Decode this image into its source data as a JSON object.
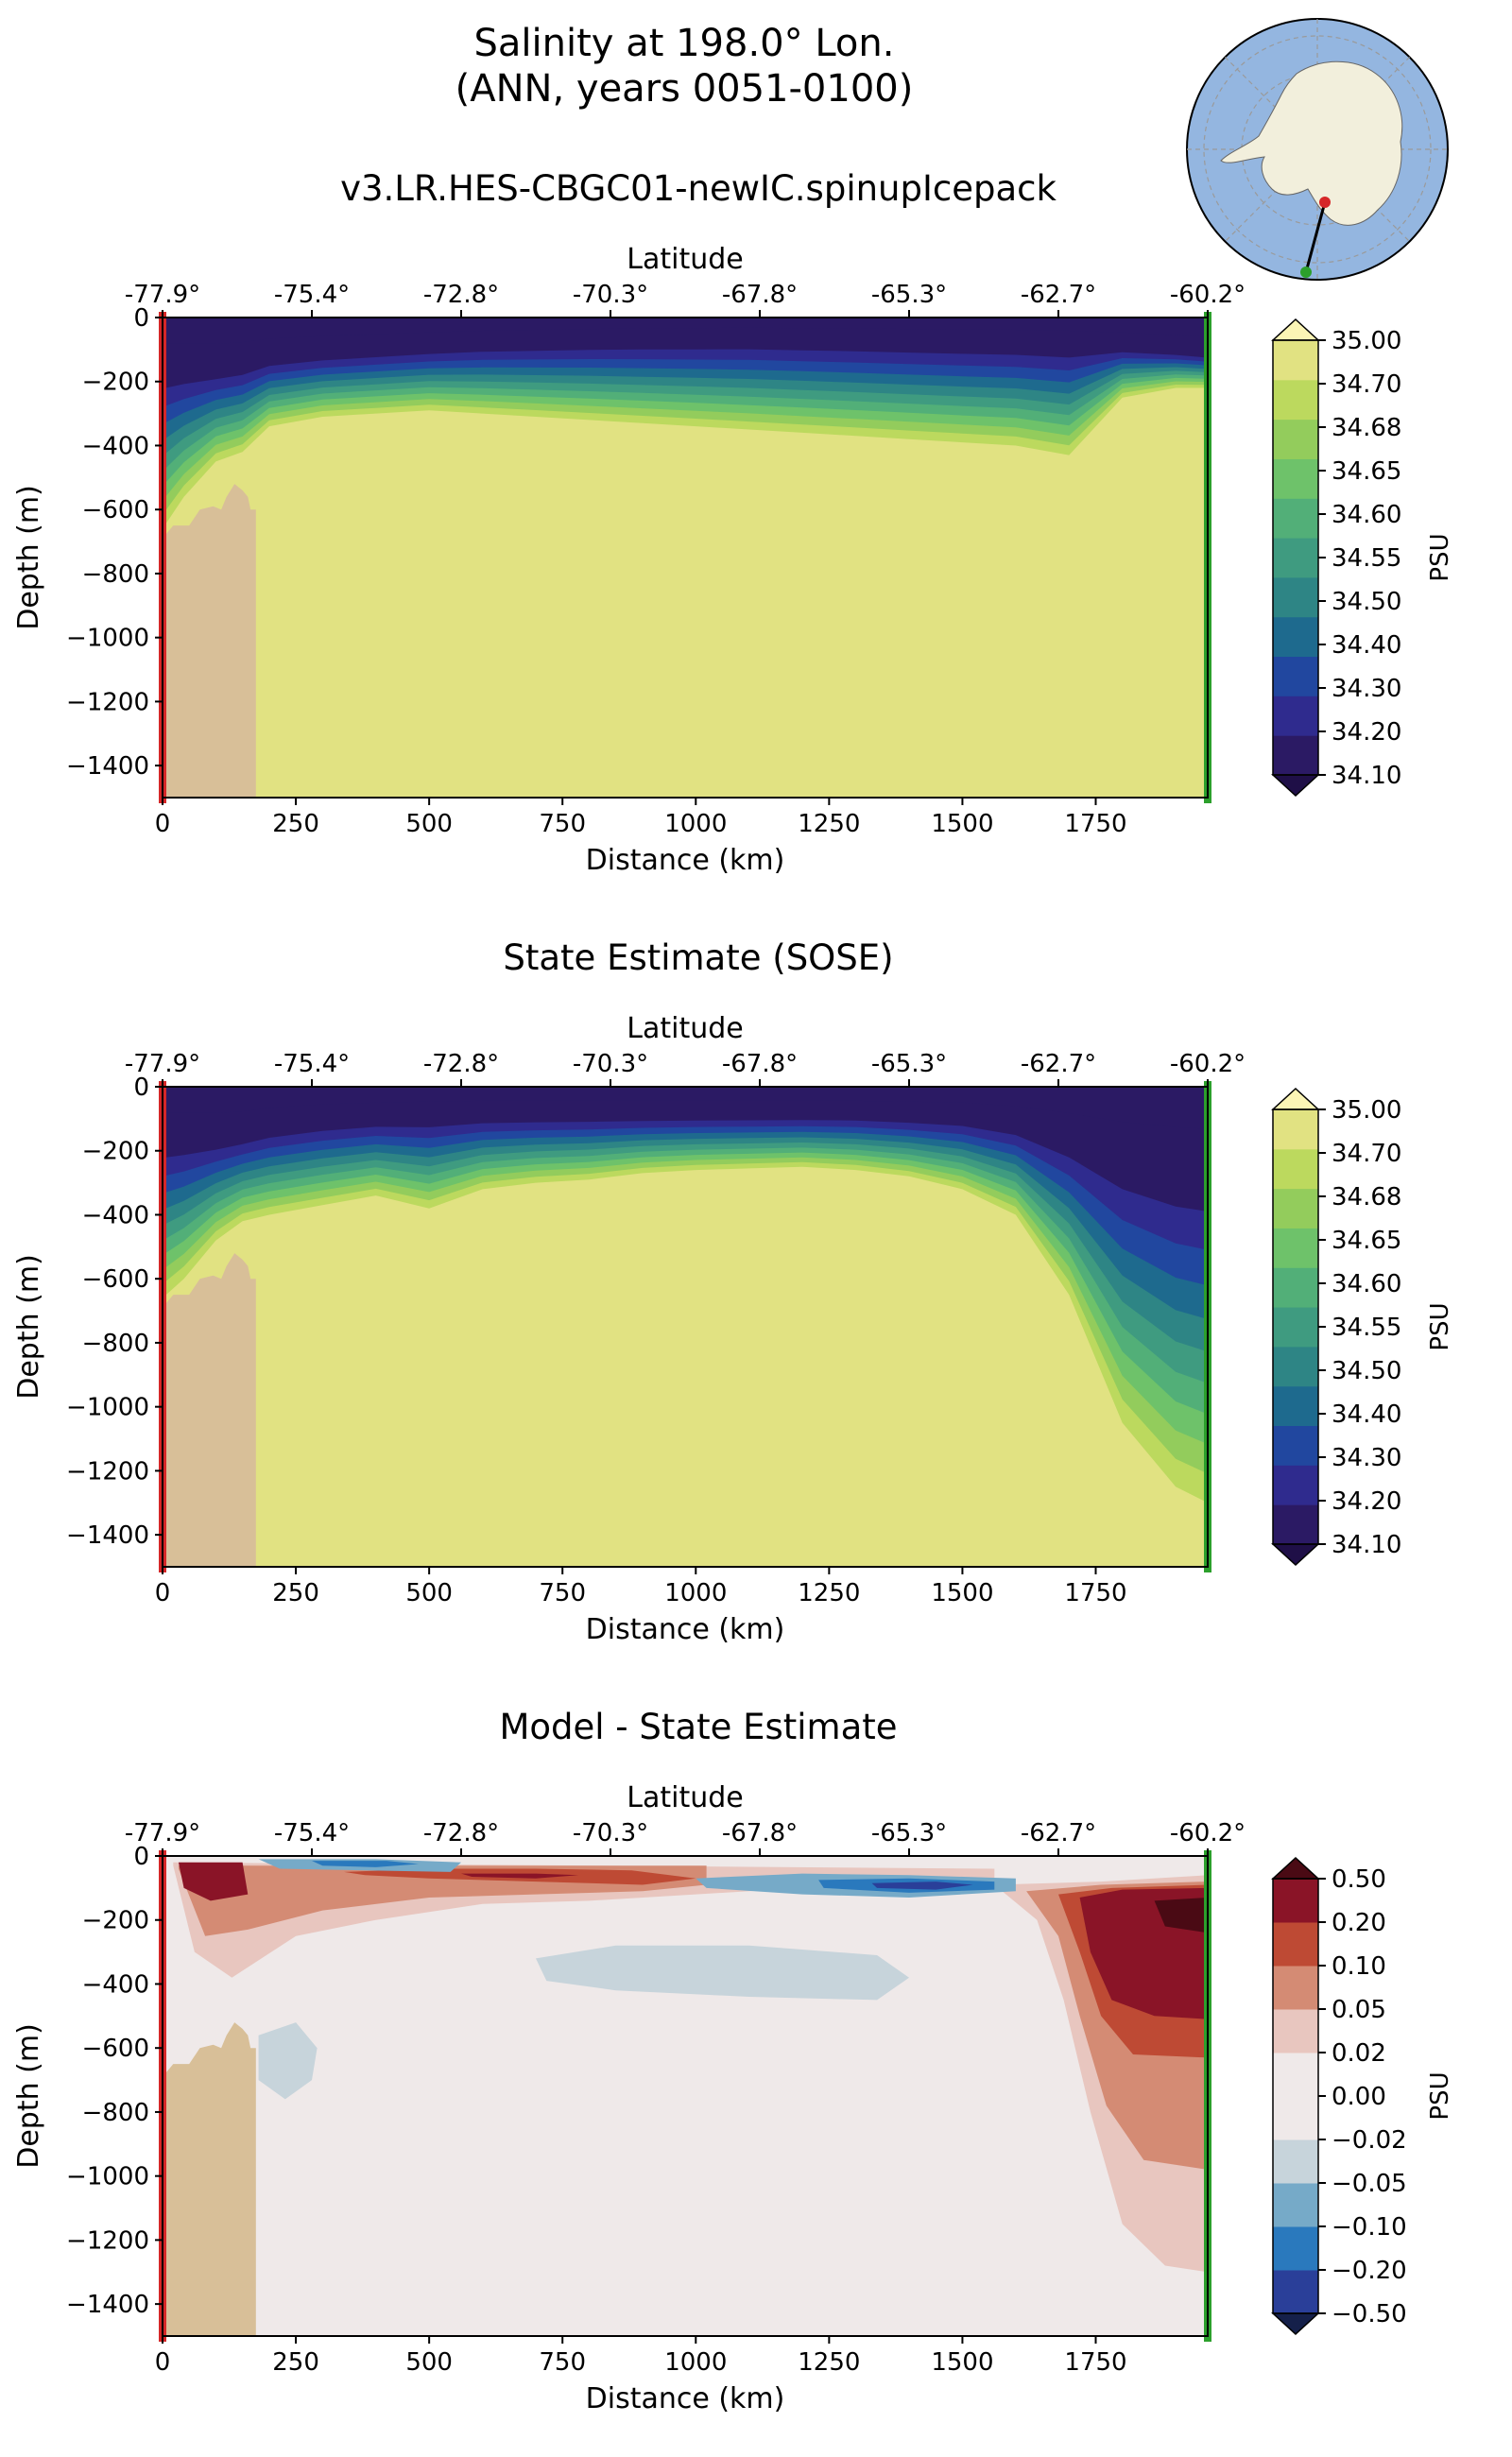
{
  "figure": {
    "title_line1": "Salinity at 198.0° Lon.",
    "title_line2": "(ANN, years 0051-0100)"
  },
  "map_inset": {
    "start_marker_color": "#d62728",
    "end_marker_color": "#2ca02c",
    "ocean_color": "#94b6e0",
    "land_color": "#f2efdc"
  },
  "chart_data": [
    {
      "type": "heatmap",
      "title": "v3.LR.HES-CBGC01-newIC.spinupIcepack",
      "xlabel": "Distance (km)",
      "ylabel": "Depth (m)",
      "top_axis_label": "Latitude",
      "top_ticks": [
        "-77.9°",
        "-75.4°",
        "-72.8°",
        "-70.3°",
        "-67.8°",
        "-65.3°",
        "-62.7°",
        "-60.2°"
      ],
      "x_ticks": [
        0,
        250,
        500,
        750,
        1000,
        1250,
        1500,
        1750
      ],
      "y_ticks": [
        0,
        -200,
        -400,
        -600,
        -800,
        -1000,
        -1200,
        -1400
      ],
      "xlim": [
        0,
        1960
      ],
      "ylim": [
        -1500,
        0
      ],
      "colorbar": {
        "label": "PSU",
        "extend": "min",
        "levels": [
          "34.10",
          "34.20",
          "34.30",
          "34.40",
          "34.50",
          "34.55",
          "34.60",
          "34.65",
          "34.68",
          "34.70",
          "35.00"
        ],
        "colors": [
          "#2b1a64",
          "#2f2b8e",
          "#21479f",
          "#1e6a8e",
          "#2e8585",
          "#3f9b80",
          "#52af78",
          "#6ec26a",
          "#93cc5c",
          "#bcd95e",
          "#e1e282"
        ]
      },
      "contour_depths_m": {
        "note": "approximate depth of each salinity isoline along distance (km)",
        "x": [
          0,
          40,
          100,
          150,
          200,
          300,
          400,
          500,
          600,
          700,
          800,
          900,
          1000,
          1100,
          1200,
          1300,
          1400,
          1500,
          1600,
          1700,
          1800,
          1900,
          1960
        ],
        "34.10": [
          -150,
          -150,
          -150,
          -140,
          -120,
          -105,
          -95,
          -85,
          -75,
          -70,
          -65,
          -62,
          -60,
          -58,
          -60,
          -62,
          -65,
          -68,
          -70,
          -75,
          -85,
          -100,
          -110
        ],
        "34.70": [
          -660,
          -560,
          -450,
          -420,
          -340,
          -310,
          -300,
          -290,
          -300,
          -310,
          -320,
          -330,
          -340,
          -350,
          -360,
          -370,
          -380,
          -390,
          -400,
          -430,
          -250,
          -220,
          -220
        ]
      },
      "seafloor": {
        "max_depth_m": -670,
        "shelf_edge_km": 175
      }
    },
    {
      "type": "heatmap",
      "title": "State Estimate (SOSE)",
      "xlabel": "Distance (km)",
      "ylabel": "Depth (m)",
      "top_axis_label": "Latitude",
      "top_ticks": [
        "-77.9°",
        "-75.4°",
        "-72.8°",
        "-70.3°",
        "-67.8°",
        "-65.3°",
        "-62.7°",
        "-60.2°"
      ],
      "x_ticks": [
        0,
        250,
        500,
        750,
        1000,
        1250,
        1500,
        1750
      ],
      "y_ticks": [
        0,
        -200,
        -400,
        -600,
        -800,
        -1000,
        -1200,
        -1400
      ],
      "xlim": [
        0,
        1960
      ],
      "ylim": [
        -1500,
        0
      ],
      "colorbar": {
        "label": "PSU",
        "extend": "min",
        "levels": [
          "34.10",
          "34.20",
          "34.30",
          "34.40",
          "34.50",
          "34.55",
          "34.60",
          "34.65",
          "34.68",
          "34.70",
          "35.00"
        ],
        "colors": [
          "#2b1a64",
          "#2f2b8e",
          "#21479f",
          "#1e6a8e",
          "#2e8585",
          "#3f9b80",
          "#52af78",
          "#6ec26a",
          "#93cc5c",
          "#bcd95e",
          "#e1e282"
        ]
      },
      "contour_depths_m": {
        "note": "approximate depth of each salinity isoline along distance (km)",
        "x": [
          0,
          40,
          100,
          150,
          200,
          300,
          400,
          500,
          600,
          700,
          800,
          900,
          1000,
          1100,
          1200,
          1300,
          1400,
          1500,
          1600,
          1700,
          1800,
          1900,
          1960
        ],
        "34.10": [
          -150,
          -150,
          -150,
          -140,
          -120,
          -100,
          -90,
          -85,
          -80,
          -80,
          -80,
          -80,
          -80,
          -80,
          -80,
          -80,
          -85,
          -90,
          -110,
          -150,
          -200,
          -230,
          -240
        ],
        "34.70": [
          -660,
          -600,
          -480,
          -420,
          -400,
          -370,
          -340,
          -380,
          -320,
          -300,
          -290,
          -270,
          -260,
          -255,
          -250,
          -260,
          -280,
          -320,
          -400,
          -650,
          -1050,
          -1250,
          -1300
        ]
      },
      "seafloor": {
        "max_depth_m": -670,
        "shelf_edge_km": 175
      }
    },
    {
      "type": "heatmap",
      "title": "Model - State Estimate",
      "xlabel": "Distance (km)",
      "ylabel": "Depth (m)",
      "top_axis_label": "Latitude",
      "top_ticks": [
        "-77.9°",
        "-75.4°",
        "-72.8°",
        "-70.3°",
        "-67.8°",
        "-65.3°",
        "-62.7°",
        "-60.2°"
      ],
      "x_ticks": [
        0,
        250,
        500,
        750,
        1000,
        1250,
        1500,
        1750
      ],
      "y_ticks": [
        0,
        -200,
        -400,
        -600,
        -800,
        -1000,
        -1200,
        -1400
      ],
      "xlim": [
        0,
        1960
      ],
      "ylim": [
        -1500,
        0
      ],
      "colorbar": {
        "label": "PSU",
        "extend": "both",
        "levels": [
          "−0.50",
          "−0.20",
          "−0.10",
          "−0.05",
          "−0.02",
          "0.00",
          "0.02",
          "0.05",
          "0.10",
          "0.20",
          "0.50"
        ],
        "colors": [
          "#2a3f99",
          "#2a79bd",
          "#76aac8",
          "#c7d4db",
          "#efe9e9",
          "#efe9e9",
          "#e8c6bf",
          "#d48b74",
          "#be4a34",
          "#8a1427"
        ],
        "extend_low_color": "#15204a",
        "extend_high_color": "#4a0a14"
      },
      "seafloor": {
        "max_depth_m": -670,
        "shelf_edge_km": 175
      }
    }
  ]
}
